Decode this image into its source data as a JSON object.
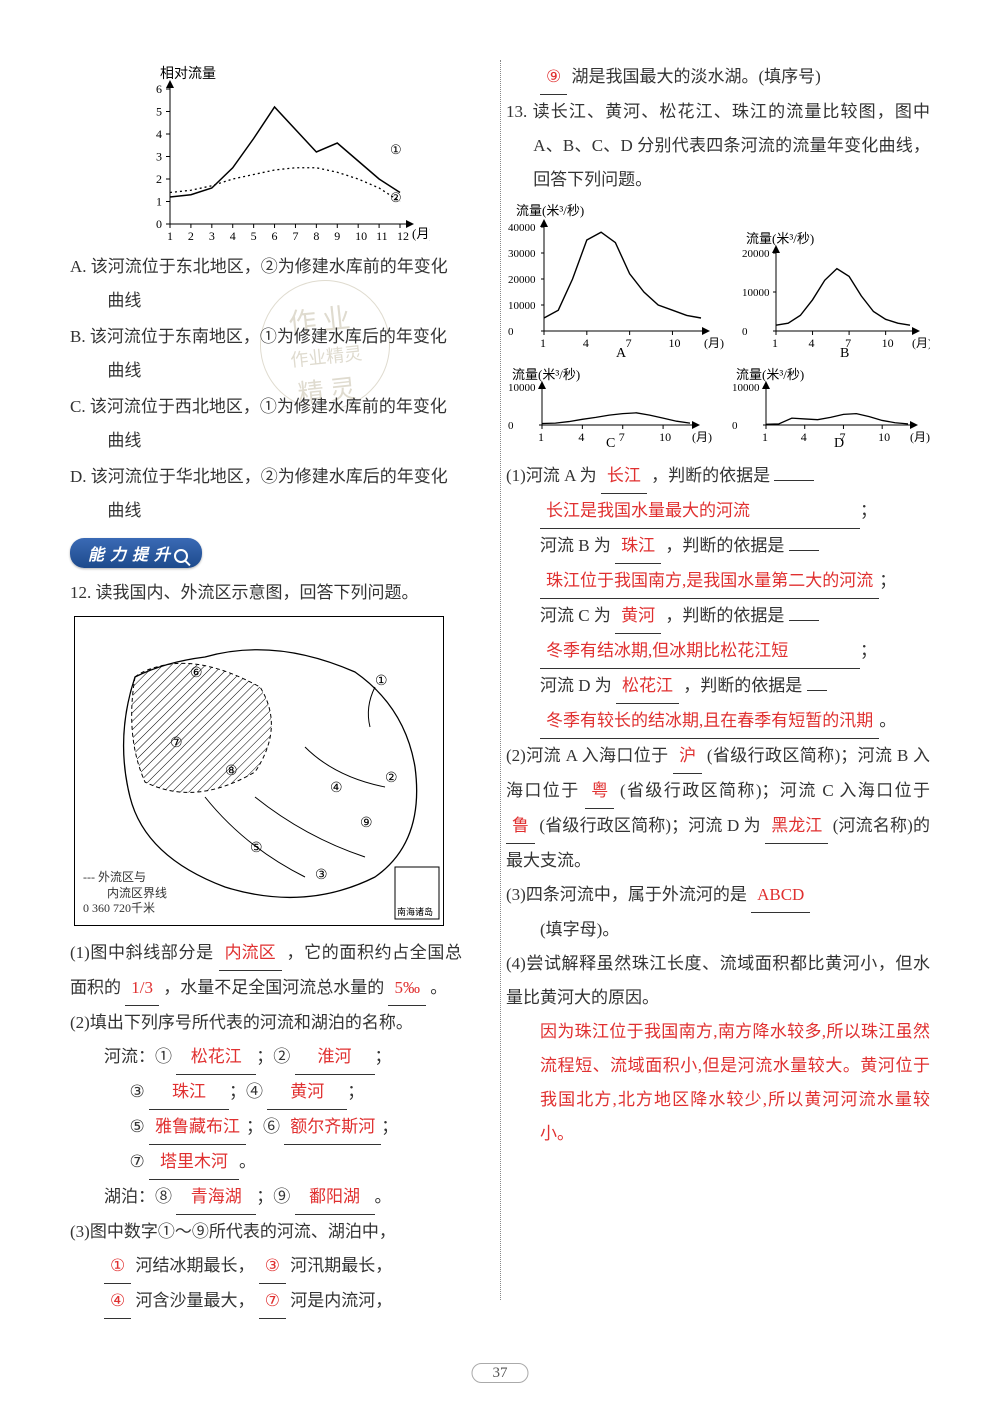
{
  "page_number": "37",
  "left": {
    "chart1": {
      "type": "line",
      "title": "相对流量",
      "xlabel": "(月)",
      "x_ticks": [
        "1",
        "2",
        "3",
        "4",
        "5",
        "6",
        "7",
        "8",
        "9",
        "10",
        "11",
        "12"
      ],
      "y_ticks": [
        "0",
        "1",
        "2",
        "3",
        "4",
        "5",
        "6"
      ],
      "ylim": [
        0,
        6
      ],
      "series": [
        {
          "label": "①",
          "style": "solid",
          "color": "#000000",
          "values": [
            1.2,
            1.3,
            1.6,
            2.5,
            3.8,
            5.2,
            4.2,
            3.2,
            3.6,
            2.8,
            2.0,
            1.4
          ]
        },
        {
          "label": "②",
          "style": "dotted",
          "color": "#000000",
          "values": [
            1.4,
            1.5,
            1.7,
            2.0,
            2.2,
            2.4,
            2.5,
            2.5,
            2.3,
            2.0,
            1.6,
            1.0
          ]
        }
      ],
      "grid_color": "#000000",
      "background": "#ffffff",
      "font_size": 12
    },
    "options": {
      "A": "该河流位于东北地区，②为修建水库前的年变化曲线",
      "B": "该河流位于东南地区，①为修建水库后的年变化曲线",
      "C": "该河流位于西北地区，①为修建水库前的年变化曲线",
      "D": "该河流位于华北地区，②为修建水库后的年变化曲线"
    },
    "section_badge": "能力提升",
    "q12_stem": "12. 读我国内、外流区示意图，回答下列问题。",
    "map": {
      "legend1": "--- 外流区与",
      "legend2": "　　内流区界线",
      "scale": "0 360 720千米",
      "corner": "南海诸岛",
      "labels": [
        "①",
        "②",
        "③",
        "④",
        "⑤",
        "⑥",
        "⑦",
        "⑧",
        "⑨"
      ]
    },
    "q12_1_a": "(1)图中斜线部分是",
    "q12_1_ans1": "内流区",
    "q12_1_b": "，它的面积约占全国总面积的",
    "q12_1_ans2": "1/3",
    "q12_1_c": "，水量不足全国河流总水量的",
    "q12_1_ans3": "5‰",
    "q12_1_d": "。",
    "q12_2_head": "(2)填出下列序号所代表的河流和湖泊的名称。",
    "rivers_label": "河流：",
    "lakes_label": "湖泊：",
    "rivers": {
      "1": "松花江",
      "2": "淮河",
      "3": "珠江",
      "4": "黄河",
      "5": "雅鲁藏布江",
      "6": "额尔齐斯河",
      "7": "塔里木河"
    },
    "lakes": {
      "8": "青海湖",
      "9": "鄱阳湖"
    },
    "q12_3_a": "(3)图中数字①～⑨所代表的河流、湖泊中，",
    "q12_3_ans1": "①",
    "q12_3_b": "河结冰期最长，",
    "q12_3_ans2": "③",
    "q12_3_c": "河汛期最长，",
    "q12_3_ans3": "④",
    "q12_3_d": "河含沙量最大，",
    "q12_3_ans4": "⑦",
    "q12_3_e": "河是内流河，"
  },
  "right": {
    "cont_ans": "⑨",
    "cont_text": "湖是我国最大的淡水湖。(填序号)",
    "q13_stem": "13. 读长江、黄河、松花江、珠江的流量比较图，图中 A、B、C、D 分别代表四条河流的流量年变化曲线，回答下列问题。",
    "chartA": {
      "type": "line",
      "label": "A",
      "ylabel": "流量(米³/秒)",
      "xlabel": "(月)",
      "x_ticks": [
        "1",
        "4",
        "7",
        "10"
      ],
      "y_ticks": [
        "0",
        "10000",
        "20000",
        "30000",
        "40000"
      ],
      "ylim": [
        0,
        40000
      ],
      "values": [
        5000,
        8000,
        20000,
        35000,
        38000,
        34000,
        22000,
        15000,
        10000,
        8000,
        6000,
        5000
      ],
      "color": "#000000"
    },
    "chartB": {
      "type": "line",
      "label": "B",
      "ylabel": "流量(米³/秒)",
      "xlabel": "(月)",
      "x_ticks": [
        "1",
        "4",
        "7",
        "10"
      ],
      "y_ticks": [
        "0",
        "10000",
        "20000"
      ],
      "ylim": [
        0,
        20000
      ],
      "values": [
        1500,
        2000,
        4000,
        8000,
        13000,
        16000,
        14000,
        9000,
        5000,
        3000,
        2000,
        1500
      ],
      "color": "#000000"
    },
    "chartC": {
      "type": "line",
      "label": "C",
      "ylabel": "流量(米³/秒)",
      "xlabel": "(月)",
      "x_ticks": [
        "1",
        "4",
        "7",
        "10"
      ],
      "y_ticks": [
        "0",
        "10000"
      ],
      "ylim": [
        0,
        10000
      ],
      "values": [
        400,
        500,
        900,
        1500,
        2000,
        2600,
        3000,
        3200,
        2600,
        1800,
        1000,
        500
      ],
      "color": "#000000"
    },
    "chartD": {
      "type": "line",
      "label": "D",
      "ylabel": "流量(米³/秒)",
      "xlabel": "(月)",
      "x_ticks": [
        "1",
        "4",
        "7",
        "10"
      ],
      "y_ticks": [
        "0",
        "10000"
      ],
      "ylim": [
        0,
        10000
      ],
      "values": [
        200,
        300,
        1800,
        1600,
        1400,
        2000,
        2800,
        3000,
        2200,
        1200,
        600,
        300
      ],
      "color": "#000000"
    },
    "q13_1_a": "(1)河流 A 为",
    "a_name": "长江",
    "q13_1_b": "，判断的依据是",
    "a_reason": "长江是我国水量最大的河流",
    "b_label": "河流 B 为",
    "b_name": "珠江",
    "b_reason": "珠江位于我国南方,是我国水量第二大的河流",
    "c_label": "河流 C 为",
    "c_name": "黄河",
    "c_reason": "冬季有结冰期,但冰期比松花江短",
    "d_label": "河流 D 为",
    "d_name": "松花江",
    "d_reason": "冬季有较长的结冰期,且在春季有短暂的汛期",
    "q13_2_a": "(2)河流 A 入海口位于",
    "aa": "沪",
    "q13_2_b": "(省级行政区简称)；河流 B 入海口位于",
    "bb": "粤",
    "q13_2_c": "(省级行政区简称)；河流 C 入海口位于",
    "cc": "鲁",
    "q13_2_d": "(省级行政区简称)；河流 D 为",
    "dd": "黑龙江",
    "q13_2_e": "(河流名称)的最大支流。",
    "q13_3_a": "(3)四条河流中，属于外流河的是",
    "q13_3_ans": "ABCD",
    "q13_3_b": "(填字母)。",
    "q13_4_a": "(4)尝试解释虽然珠江长度、流域面积都比黄河小，但水量比黄河大的原因。",
    "q13_4_ans": "因为珠江位于我国南方,南方降水较多,所以珠江虽然流程短、流域面积小,但是河流水量较大。黄河位于我国北方,北方地区降水较少,所以黄河河流水量较小。"
  },
  "watermark": {
    "l1": "作业",
    "l2": "作业精灵",
    "l3": "精灵"
  }
}
